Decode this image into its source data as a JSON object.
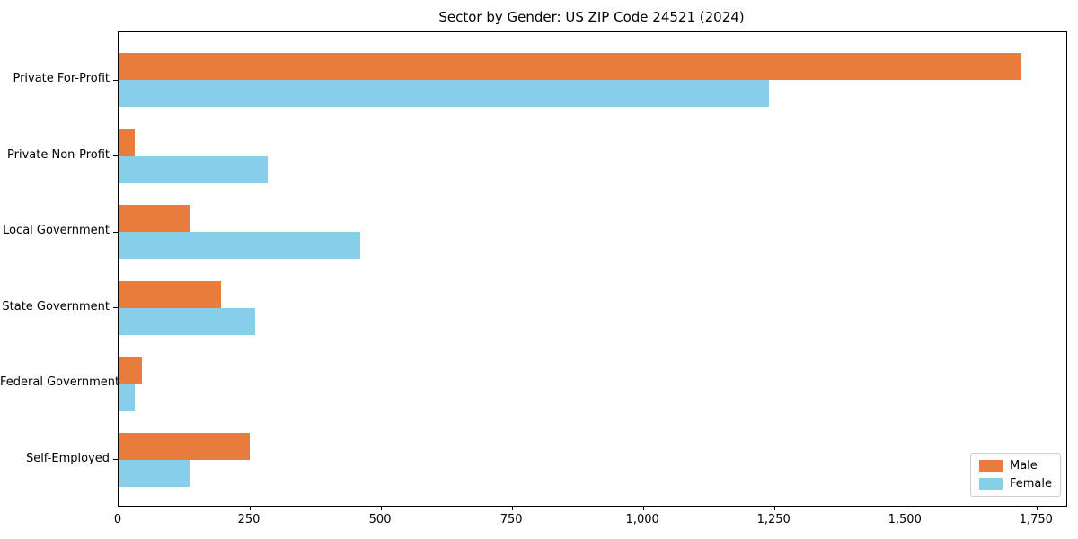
{
  "chart_data": {
    "type": "bar",
    "orientation": "horizontal",
    "title": "Sector by Gender: US ZIP Code 24521 (2024)",
    "categories": [
      "Private For-Profit",
      "Private Non-Profit",
      "Local Government",
      "State Government",
      "Federal Government",
      "Self-Employed"
    ],
    "series": [
      {
        "name": "Male",
        "color": "#e87c3c",
        "values": [
          1720,
          30,
          135,
          195,
          45,
          250
        ]
      },
      {
        "name": "Female",
        "color": "#87ceeb",
        "values": [
          1240,
          285,
          460,
          260,
          30,
          135
        ]
      }
    ],
    "xlim": [
      0,
      1806
    ],
    "x_ticks": [
      0,
      250,
      500,
      750,
      1000,
      1250,
      1500,
      1750
    ],
    "x_tick_labels": [
      "0",
      "250",
      "500",
      "750",
      "1,000",
      "1,250",
      "1,500",
      "1,750"
    ],
    "legend_position": "lower right",
    "grid": false,
    "axis_color": "#000000",
    "background_color": "#ffffff"
  }
}
